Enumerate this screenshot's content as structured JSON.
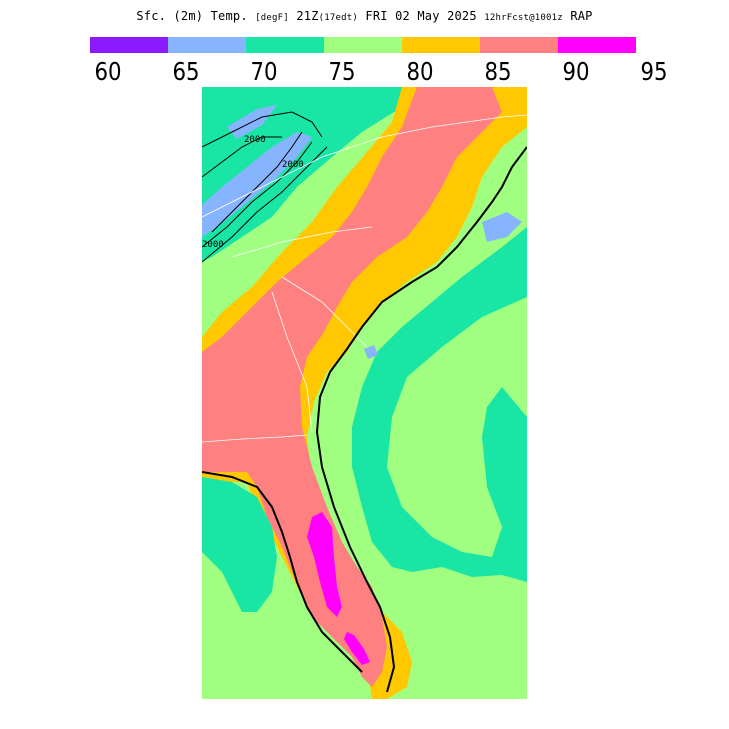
{
  "header": {
    "title_main": "Sfc. (2m) Temp.",
    "title_unit": "[degF]",
    "title_time": "21Z",
    "title_local": "(17edt)",
    "title_date": "FRI 02 May 2025",
    "title_fcst": "12hrFcst@1001z",
    "title_model": "RAP"
  },
  "legend": {
    "bins": [
      {
        "from": 60,
        "to": 65,
        "color": "#8b1aff"
      },
      {
        "from": 65,
        "to": 70,
        "color": "#87b4ff"
      },
      {
        "from": 70,
        "to": 75,
        "color": "#19e6a5"
      },
      {
        "from": 75,
        "to": 80,
        "color": "#a0ff80"
      },
      {
        "from": 80,
        "to": 85,
        "color": "#ffc800"
      },
      {
        "from": 85,
        "to": 90,
        "color": "#ff8080"
      },
      {
        "from": 90,
        "to": 95,
        "color": "#ff00ff"
      }
    ],
    "tick_labels": [
      "60",
      "65",
      "70",
      "75",
      "80",
      "85",
      "90",
      "95"
    ]
  },
  "map": {
    "contour_label": "2000",
    "shading_colors": {
      "bin_65_70": "#87b4ff",
      "bin_70_75": "#19e6a5",
      "bin_75_80": "#a0ff80",
      "bin_80_85": "#ffc800",
      "bin_85_90": "#ff8080",
      "bin_90_95": "#ff00ff"
    }
  }
}
